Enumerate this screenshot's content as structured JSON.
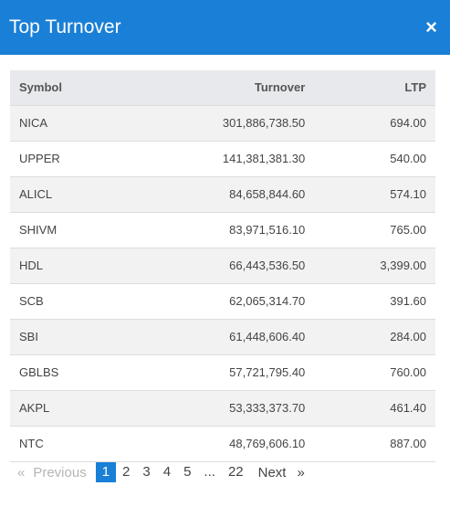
{
  "header": {
    "title": "Top Turnover",
    "close_icon": "×"
  },
  "table": {
    "columns": {
      "symbol": "Symbol",
      "turnover": "Turnover",
      "ltp": "LTP"
    },
    "rows": [
      {
        "symbol": "NICA",
        "turnover": "301,886,738.50",
        "ltp": "694.00"
      },
      {
        "symbol": "UPPER",
        "turnover": "141,381,381.30",
        "ltp": "540.00"
      },
      {
        "symbol": "ALICL",
        "turnover": "84,658,844.60",
        "ltp": "574.10"
      },
      {
        "symbol": "SHIVM",
        "turnover": "83,971,516.10",
        "ltp": "765.00"
      },
      {
        "symbol": "HDL",
        "turnover": "66,443,536.50",
        "ltp": "3,399.00"
      },
      {
        "symbol": "SCB",
        "turnover": "62,065,314.70",
        "ltp": "391.60"
      },
      {
        "symbol": "SBI",
        "turnover": "61,448,606.40",
        "ltp": "284.00"
      },
      {
        "symbol": "GBLBS",
        "turnover": "57,721,795.40",
        "ltp": "760.00"
      },
      {
        "symbol": "AKPL",
        "turnover": "53,333,373.70",
        "ltp": "461.40"
      },
      {
        "symbol": "NTC",
        "turnover": "48,769,606.10",
        "ltp": "887.00"
      }
    ]
  },
  "pagination": {
    "prev_icon": "«",
    "prev_label": "Previous",
    "pages": [
      "1",
      "2",
      "3",
      "4",
      "5",
      "...",
      "22"
    ],
    "current": "1",
    "next_label": "Next",
    "next_icon": "»"
  },
  "colors": {
    "accent": "#1a7fd6",
    "header_row": "#e7e9ec",
    "stripe": "#f2f2f2"
  }
}
